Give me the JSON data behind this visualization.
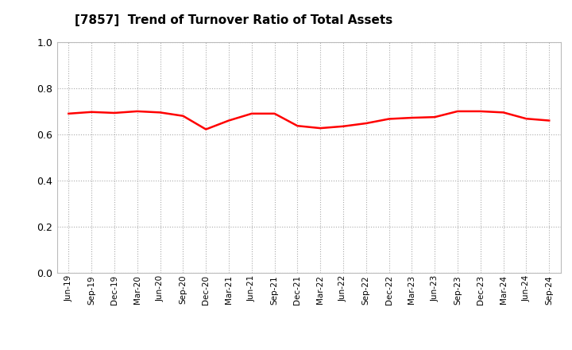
{
  "title": "[7857]  Trend of Turnover Ratio of Total Assets",
  "title_fontsize": 11,
  "line_color": "#FF0000",
  "line_width": 1.8,
  "background_color": "#FFFFFF",
  "grid_color": "#AAAAAA",
  "ylim": [
    0.0,
    1.0
  ],
  "yticks": [
    0.0,
    0.2,
    0.4,
    0.6,
    0.8,
    1.0
  ],
  "x_labels": [
    "Jun-19",
    "Sep-19",
    "Dec-19",
    "Mar-20",
    "Jun-20",
    "Sep-20",
    "Dec-20",
    "Mar-21",
    "Jun-21",
    "Sep-21",
    "Dec-21",
    "Mar-22",
    "Jun-22",
    "Sep-22",
    "Dec-22",
    "Mar-23",
    "Jun-23",
    "Sep-23",
    "Dec-23",
    "Mar-24",
    "Jun-24",
    "Sep-24"
  ],
  "values": [
    0.69,
    0.697,
    0.693,
    0.7,
    0.695,
    0.68,
    0.622,
    0.66,
    0.69,
    0.69,
    0.637,
    0.627,
    0.635,
    0.648,
    0.667,
    0.672,
    0.675,
    0.7,
    0.7,
    0.695,
    0.668,
    0.66
  ]
}
